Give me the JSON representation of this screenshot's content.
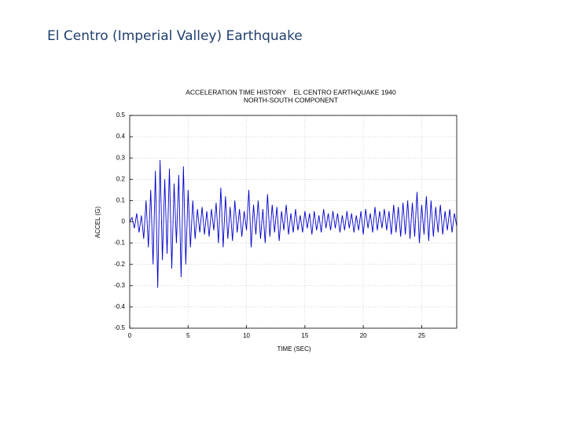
{
  "slide_title": "El Centro (Imperial Valley) Earthquake",
  "chart_data": {
    "type": "line",
    "title": "ACCELERATION TIME HISTORY    EL CENTRO EARTHQUAKE 1940",
    "subtitle": "NORTH-SOUTH COMPONENT",
    "xlabel": "TIME (SEC)",
    "ylabel": "ACCEL (G)",
    "x": [
      0,
      0.2,
      0.4,
      0.6,
      0.8,
      1,
      1.2,
      1.4,
      1.6,
      1.8,
      2,
      2.2,
      2.4,
      2.6,
      2.8,
      3,
      3.2,
      3.4,
      3.6,
      3.8,
      4,
      4.2,
      4.4,
      4.6,
      4.8,
      5,
      5.2,
      5.4,
      5.6,
      5.8,
      6,
      6.2,
      6.4,
      6.6,
      6.8,
      7,
      7.2,
      7.4,
      7.6,
      7.8,
      8,
      8.2,
      8.4,
      8.6,
      8.8,
      9,
      9.2,
      9.4,
      9.6,
      9.8,
      10,
      10.2,
      10.4,
      10.6,
      10.8,
      11,
      11.2,
      11.4,
      11.6,
      11.8,
      12,
      12.2,
      12.4,
      12.6,
      12.8,
      13,
      13.2,
      13.4,
      13.6,
      13.8,
      14,
      14.2,
      14.4,
      14.6,
      14.8,
      15,
      15.2,
      15.4,
      15.6,
      15.8,
      16,
      16.2,
      16.4,
      16.6,
      16.8,
      17,
      17.2,
      17.4,
      17.6,
      17.8,
      18,
      18.2,
      18.4,
      18.6,
      18.8,
      19,
      19.2,
      19.4,
      19.6,
      19.8,
      20,
      20.2,
      20.4,
      20.6,
      20.8,
      21,
      21.2,
      21.4,
      21.6,
      21.8,
      22,
      22.2,
      22.4,
      22.6,
      22.8,
      23,
      23.2,
      23.4,
      23.6,
      23.8,
      24,
      24.2,
      24.4,
      24.6,
      24.8,
      25,
      25.2,
      25.4,
      25.6,
      25.8,
      26,
      26.2,
      26.4,
      26.6,
      26.8,
      27,
      27.2,
      27.4,
      27.6,
      27.8,
      28
    ],
    "series": [
      {
        "color": "#0000cc",
        "values": [
          0,
          0.02,
          -0.03,
          0.04,
          -0.05,
          0.03,
          -0.08,
          0.1,
          -0.12,
          0.15,
          -0.2,
          0.24,
          -0.31,
          0.29,
          -0.18,
          0.2,
          -0.15,
          0.25,
          -0.22,
          0.18,
          -0.1,
          0.22,
          -0.26,
          0.26,
          -0.2,
          0.15,
          -0.12,
          0.1,
          -0.08,
          0.06,
          -0.05,
          0.07,
          -0.06,
          0.05,
          -0.07,
          0.06,
          -0.04,
          0.09,
          -0.1,
          0.16,
          -0.12,
          0.12,
          -0.08,
          0.07,
          -0.09,
          0.1,
          -0.05,
          0.06,
          -0.07,
          0.05,
          -0.04,
          0.15,
          -0.12,
          0.08,
          -0.06,
          0.1,
          -0.08,
          0.06,
          -0.1,
          0.13,
          -0.07,
          0.08,
          -0.05,
          0.07,
          -0.09,
          0.05,
          -0.04,
          0.08,
          -0.06,
          0.04,
          -0.05,
          0.06,
          -0.04,
          0.03,
          -0.05,
          0.05,
          -0.03,
          0.04,
          -0.06,
          0.05,
          -0.04,
          0.03,
          -0.05,
          0.06,
          -0.03,
          0.04,
          -0.04,
          0.05,
          -0.03,
          0.04,
          -0.05,
          0.03,
          -0.04,
          0.05,
          -0.03,
          0.04,
          -0.05,
          0.03,
          -0.04,
          0.05,
          -0.06,
          0.06,
          -0.03,
          0.04,
          -0.05,
          0.07,
          -0.04,
          0.05,
          -0.03,
          0.06,
          -0.04,
          0.05,
          -0.06,
          0.08,
          -0.05,
          0.07,
          -0.07,
          0.09,
          -0.06,
          0.1,
          -0.08,
          0.09,
          -0.07,
          0.14,
          -0.1,
          0.08,
          -0.06,
          0.12,
          -0.09,
          0.1,
          -0.07,
          0.07,
          -0.05,
          0.08,
          -0.06,
          0.05,
          -0.04,
          0.06,
          -0.05,
          0.04,
          -0.02
        ]
      }
    ],
    "xlim": [
      0,
      28
    ],
    "xticks": [
      0,
      5,
      10,
      15,
      20,
      25
    ],
    "ylim": [
      -0.5,
      0.5
    ],
    "yticks": [
      -0.5,
      -0.4,
      -0.3,
      -0.2,
      -0.1,
      0,
      0.1,
      0.2,
      0.3,
      0.4,
      0.5
    ],
    "grid": true
  }
}
